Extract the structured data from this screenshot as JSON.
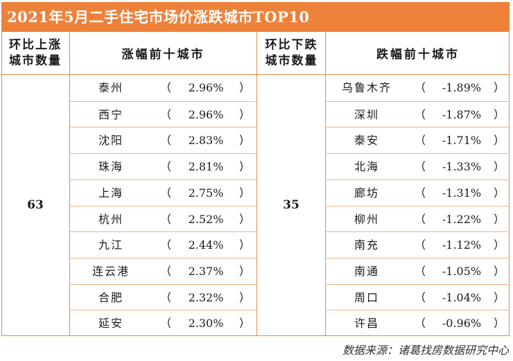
{
  "title": "2021年5月二手住宅市场价涨跌城市TOP10",
  "colors": {
    "accent": "#ee8139",
    "border": "#e6874a"
  },
  "headers": {
    "up_count_label": [
      "环比上涨",
      "城市数量"
    ],
    "up_top_label": "涨幅前十城市",
    "down_count_label": [
      "环比下跌",
      "城市数量"
    ],
    "down_top_label": "跌幅前十城市"
  },
  "up_count": "63",
  "down_count": "35",
  "paren_open": "（",
  "paren_close": "）",
  "up_cities": [
    {
      "city": "泰州",
      "pct": "2.96%"
    },
    {
      "city": "西宁",
      "pct": "2.96%"
    },
    {
      "city": "沈阳",
      "pct": "2.83%"
    },
    {
      "city": "珠海",
      "pct": "2.81%"
    },
    {
      "city": "上海",
      "pct": "2.75%"
    },
    {
      "city": "杭州",
      "pct": "2.52%"
    },
    {
      "city": "九江",
      "pct": "2.44%"
    },
    {
      "city": "连云港",
      "pct": "2.37%"
    },
    {
      "city": "合肥",
      "pct": "2.32%"
    },
    {
      "city": "延安",
      "pct": "2.30%"
    }
  ],
  "down_cities": [
    {
      "city": "乌鲁木齐",
      "pct": "-1.89%"
    },
    {
      "city": "深圳",
      "pct": "-1.87%"
    },
    {
      "city": "泰安",
      "pct": "-1.71%"
    },
    {
      "city": "北海",
      "pct": "-1.33%"
    },
    {
      "city": "廊坊",
      "pct": "-1.31%"
    },
    {
      "city": "柳州",
      "pct": "-1.22%"
    },
    {
      "city": "南充",
      "pct": "-1.12%"
    },
    {
      "city": "南通",
      "pct": "-1.05%"
    },
    {
      "city": "周口",
      "pct": "-1.04%"
    },
    {
      "city": "许昌",
      "pct": "-0.96%"
    }
  ],
  "source": "数据来源：诸葛找房数据研究中心"
}
